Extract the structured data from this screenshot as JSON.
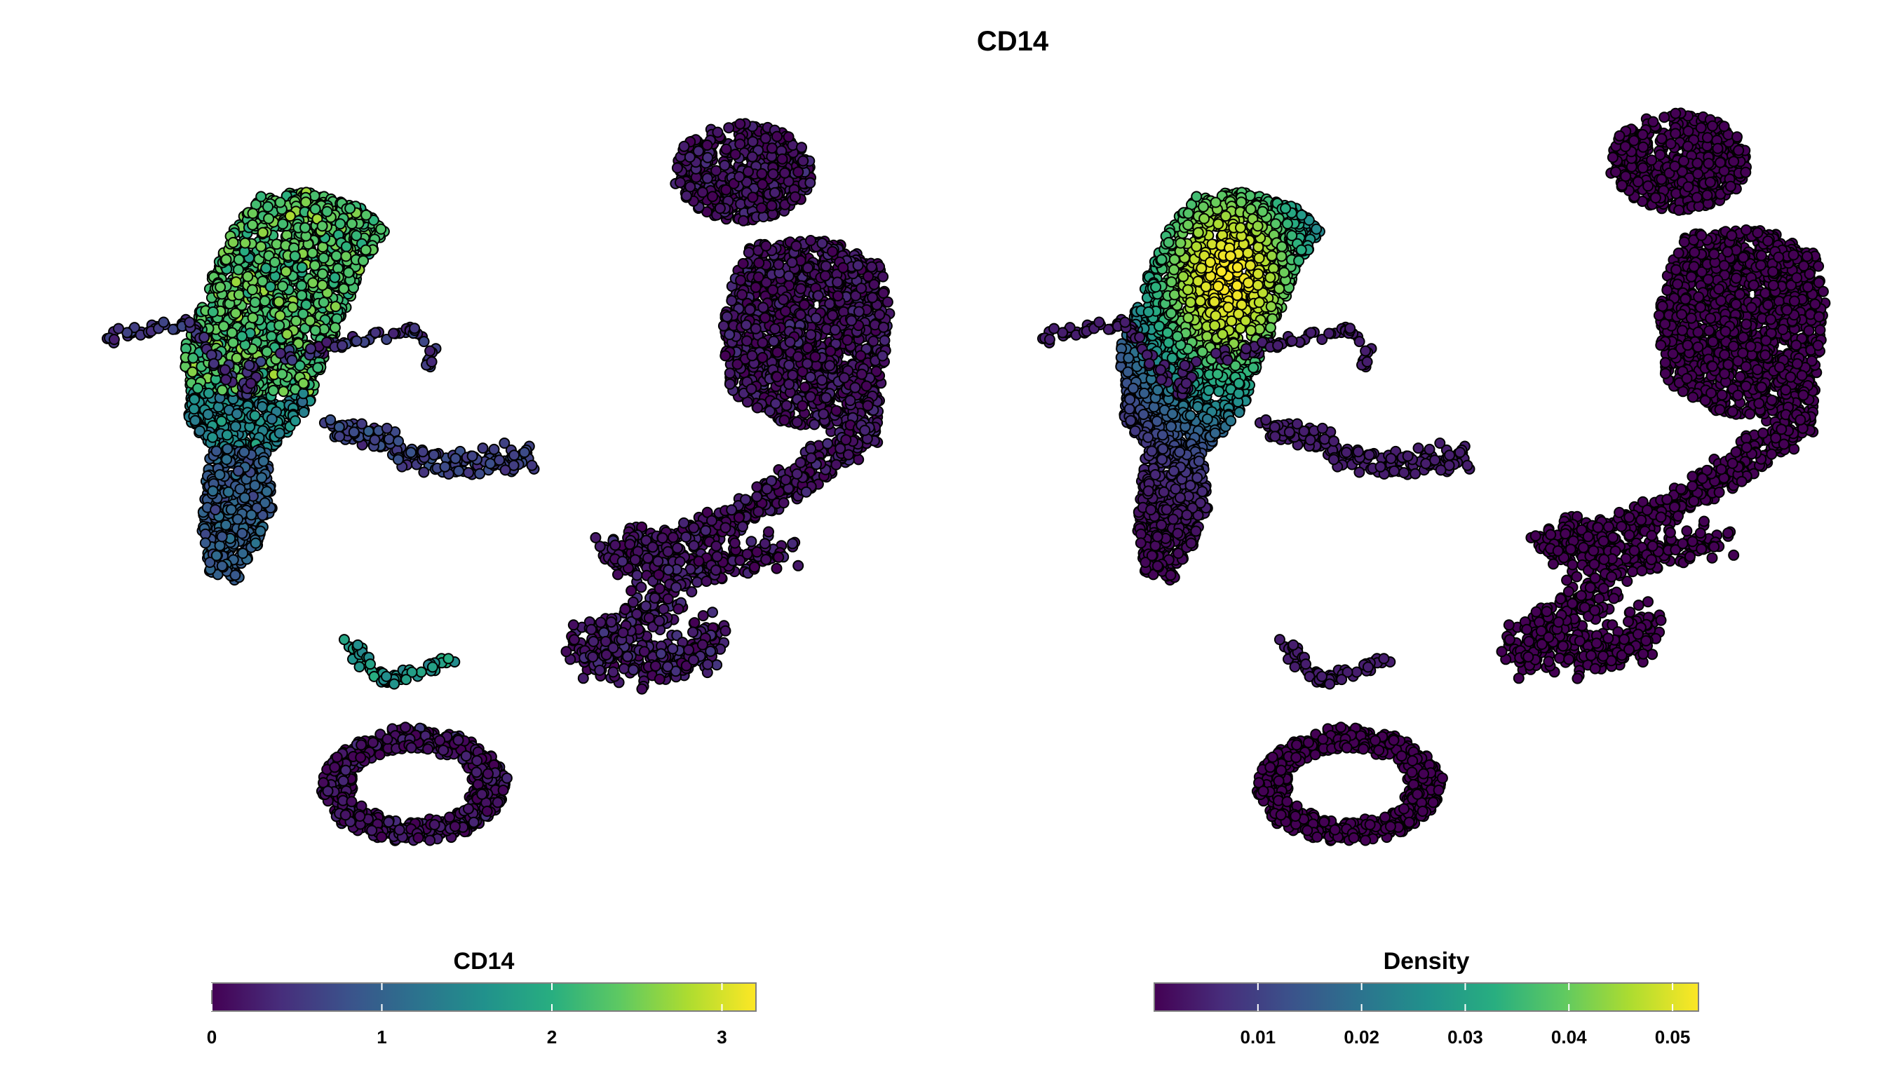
{
  "figure": {
    "title": "CD14"
  },
  "chart_data": [
    {
      "type": "scatter",
      "panel": "expression",
      "color_by": "CD14",
      "legend": {
        "title": "CD14",
        "position": "bottom",
        "scale_min": 0,
        "scale_max": 3.2,
        "ticks": [
          0,
          1,
          2,
          3
        ],
        "tick_labels": [
          "0",
          "1",
          "2",
          "3"
        ]
      },
      "axes_visible": false,
      "grid": false,
      "palette": [
        "#440154",
        "#472d7b",
        "#3b528b",
        "#2c728e",
        "#21918c",
        "#28ae80",
        "#5ec962",
        "#addc30",
        "#fde725"
      ],
      "clusters": [
        {
          "name": "monocyte-blob",
          "level": 0.72
        },
        {
          "name": "monocyte-tail",
          "level": 0.3
        },
        {
          "name": "lower-left-arm",
          "level": 0.2
        },
        {
          "name": "mid-islands",
          "level": 0.15
        },
        {
          "name": "small-mid-cluster",
          "level": 0.55
        },
        {
          "name": "bottom-ring",
          "level": 0.05
        },
        {
          "name": "right-top-blob",
          "level": 0.05
        },
        {
          "name": "right-main-blob",
          "level": 0.05
        },
        {
          "name": "right-diagonal-arm",
          "level": 0.05
        },
        {
          "name": "right-bottom-cluster",
          "level": 0.07
        }
      ]
    },
    {
      "type": "scatter",
      "panel": "density",
      "color_by": "Density",
      "legend": {
        "title": "Density",
        "position": "bottom",
        "scale_min": 0,
        "scale_max": 0.0525,
        "ticks": [
          0.01,
          0.02,
          0.03,
          0.04,
          0.05
        ],
        "tick_labels": [
          "0.01",
          "0.02",
          "0.03",
          "0.04",
          "0.05"
        ]
      },
      "axes_visible": false,
      "grid": false,
      "palette": [
        "#440154",
        "#472d7b",
        "#3b528b",
        "#2c728e",
        "#21918c",
        "#28ae80",
        "#5ec962",
        "#addc30",
        "#fde725"
      ],
      "peak": {
        "cluster": "monocyte-blob",
        "level": 1.0
      }
    }
  ]
}
